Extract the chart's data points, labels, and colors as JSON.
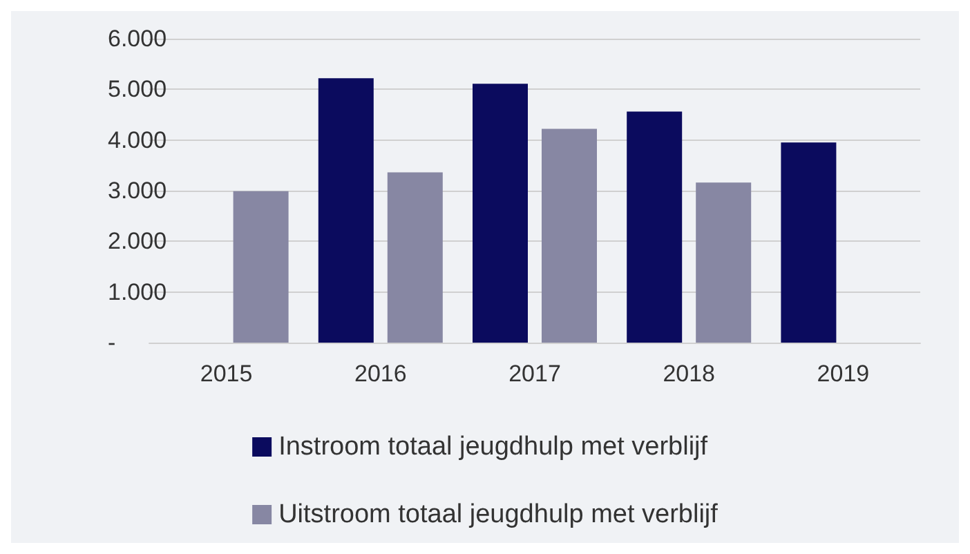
{
  "chart_data": {
    "type": "bar",
    "categories": [
      "2015",
      "2016",
      "2017",
      "2018",
      "2019"
    ],
    "series": [
      {
        "name": "Instroom totaal jeugdhulp met verblijf",
        "color": "#0b0b5e",
        "values": [
          null,
          5220,
          5110,
          4560,
          3950
        ]
      },
      {
        "name": "Uitstroom totaal jeugdhulp met verblijf",
        "color": "#8787a3",
        "values": [
          2990,
          3360,
          4220,
          3160,
          null
        ]
      }
    ],
    "ylim": [
      0,
      6000
    ],
    "yticks": [
      {
        "value": 0,
        "label": "-"
      },
      {
        "value": 1000,
        "label": "1.000"
      },
      {
        "value": 2000,
        "label": "2.000"
      },
      {
        "value": 3000,
        "label": "3.000"
      },
      {
        "value": 4000,
        "label": "4.000"
      },
      {
        "value": 5000,
        "label": "5.000"
      },
      {
        "value": 6000,
        "label": "6.000"
      }
    ],
    "grid": "y",
    "legend": "bottom"
  }
}
